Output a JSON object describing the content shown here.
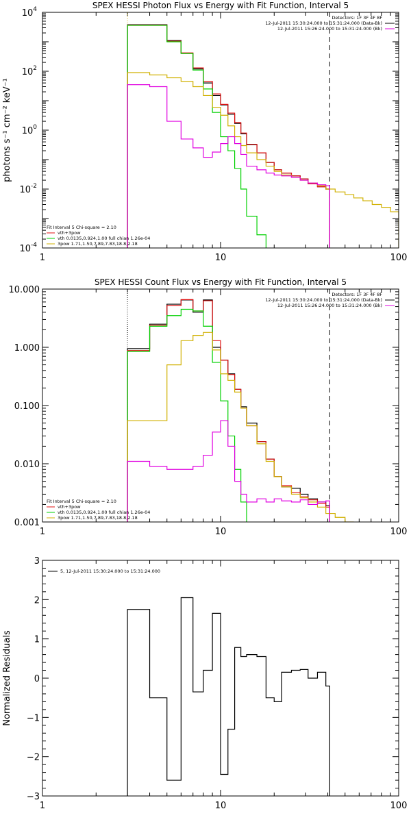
{
  "chart_data": [
    {
      "type": "line",
      "title": "SPEX HESSI Photon Flux vs Energy with Fit Function, Interval 5",
      "xlabel": "",
      "ylabel": "photons s⁻¹ cm⁻² keV⁻¹",
      "xscale": "log",
      "yscale": "log",
      "xlim": [
        1,
        100
      ],
      "ylim": [
        0.0001,
        10000
      ],
      "xticks": [
        {
          "v": 1,
          "label": "1"
        },
        {
          "v": 10,
          "label": "10"
        },
        {
          "v": 100,
          "label": "100"
        }
      ],
      "yticks": [
        {
          "v": 0.0001,
          "base": "10",
          "exp": "-4"
        },
        {
          "v": 0.01,
          "base": "10",
          "exp": "-2"
        },
        {
          "v": 1,
          "base": "10",
          "exp": "0"
        },
        {
          "v": 100,
          "base": "10",
          "exp": "2"
        },
        {
          "v": 10000,
          "base": "10",
          "exp": "4"
        }
      ],
      "legend_topright": [
        "Detectors: 1F 3F 4F 8F",
        "12-Jul-2011 15:30:24.000 to 15:31:24.000 (Data-Bk)",
        "12-Jul-2011 15:26:24.000 to 15:31:24.000 (Bk)"
      ],
      "legend_bottomleft": [
        "Fit Interval 5   Chi-square = 2.10",
        "vth+3pow",
        "vth 0.0135,0.924,1.00  full chian 1.26e-04",
        "3pow 1.71,1.50,7.89,7.83,18.8,2.18"
      ],
      "vlines": [
        {
          "x": 3,
          "style": "dotted",
          "color": "#d0b000"
        },
        {
          "x": 41,
          "style": "dashed",
          "color": "#000000"
        }
      ],
      "series": [
        {
          "color": "#000000",
          "edges": [
            3,
            4,
            5,
            6,
            7,
            8,
            9,
            10,
            11,
            12,
            13,
            14,
            16,
            18,
            20,
            22,
            25,
            28,
            31,
            35,
            39,
            41
          ],
          "values": [
            3800,
            3800,
            1100,
            410,
            120,
            40,
            15,
            7.2,
            3.5,
            1.7,
            0.75,
            0.32,
            0.17,
            0.08,
            0.045,
            0.035,
            0.028,
            0.022,
            0.015,
            0.012,
            0.01
          ]
        },
        {
          "color": "#e01010",
          "edges": [
            3,
            4,
            5,
            6,
            7,
            8,
            9,
            10,
            11,
            12,
            13,
            14,
            16,
            18,
            20,
            22,
            25,
            28,
            31,
            35,
            39,
            41
          ],
          "values": [
            3700,
            3700,
            1050,
            420,
            130,
            45,
            17,
            7.5,
            3.8,
            1.8,
            0.8,
            0.33,
            0.17,
            0.08,
            0.045,
            0.035,
            0.028,
            0.022,
            0.015,
            0.012,
            0.01
          ]
        },
        {
          "color": "#00d000",
          "edges": [
            3,
            4,
            5,
            6,
            7,
            8,
            9,
            10,
            11,
            12,
            13,
            14,
            16,
            18
          ],
          "values": [
            3600,
            3600,
            1000,
            400,
            110,
            25,
            4,
            0.6,
            0.2,
            0.05,
            0.01,
            0.0012,
            0.00028,
            0.0001
          ]
        },
        {
          "color": "#d0b000",
          "edges": [
            3,
            4,
            5,
            6,
            7,
            8,
            9,
            10,
            11,
            12,
            13,
            14,
            16,
            18,
            20,
            22,
            25,
            28,
            31,
            35,
            39,
            44,
            50,
            56,
            63,
            71,
            80,
            90,
            100
          ],
          "values": [
            90,
            75,
            60,
            45,
            30,
            15,
            6,
            3.2,
            1.4,
            0.6,
            0.3,
            0.17,
            0.1,
            0.06,
            0.04,
            0.03,
            0.025,
            0.02,
            0.016,
            0.013,
            0.01,
            0.008,
            0.0065,
            0.005,
            0.004,
            0.003,
            0.0024,
            0.0017
          ]
        },
        {
          "color": "#e000e0",
          "edges": [
            3,
            4,
            5,
            6,
            7,
            8,
            9,
            10,
            11,
            12,
            13,
            14,
            16,
            18,
            20,
            22,
            25,
            28,
            31,
            35,
            39,
            41
          ],
          "values": [
            35,
            30,
            2,
            0.5,
            0.25,
            0.12,
            0.18,
            0.35,
            0.6,
            0.35,
            0.15,
            0.06,
            0.045,
            0.035,
            0.03,
            0.028,
            0.025,
            0.02,
            0.016,
            0.014,
            0.013
          ]
        }
      ]
    },
    {
      "type": "line",
      "title": "SPEX HESSI Count Flux vs Energy with Fit Function, Interval 5",
      "xlabel": "",
      "ylabel": "",
      "xscale": "log",
      "yscale": "log",
      "xlim": [
        1,
        100
      ],
      "ylim": [
        0.001,
        10
      ],
      "xticks": [
        {
          "v": 1,
          "label": "1"
        },
        {
          "v": 10,
          "label": "10"
        },
        {
          "v": 100,
          "label": "100"
        }
      ],
      "yticks": [
        {
          "v": 0.001,
          "label": "0.001"
        },
        {
          "v": 0.01,
          "label": "0.010"
        },
        {
          "v": 0.1,
          "label": "0.100"
        },
        {
          "v": 1,
          "label": "1.000"
        },
        {
          "v": 10,
          "label": "10.000"
        }
      ],
      "legend_topright": [
        "Detectors: 1F 3F 4F 8F",
        "12-Jul-2011 15:30:24.000 to 15:31:24.000 (Data-Bk)",
        "12-Jul-2011 15:26:24.000 to 15:31:24.000 (Bk)"
      ],
      "legend_bottomleft": [
        "Fit Interval 5   Chi-square = 2.10",
        "vth+3pow",
        "vth 0.0135,0.924,1.00  full chian 1.26e-04",
        "3pow 1.71,1.50,7.89,7.83,18.8,2.18"
      ],
      "vlines": [
        {
          "x": 3,
          "style": "dotted",
          "color": "#000000"
        },
        {
          "x": 41,
          "style": "dashed",
          "color": "#000000"
        }
      ],
      "series": [
        {
          "color": "#000000",
          "edges": [
            3,
            4,
            5,
            6,
            7,
            8,
            9,
            10,
            11,
            12,
            13,
            14,
            16,
            18,
            20,
            22,
            25,
            28,
            31,
            35,
            39,
            41
          ],
          "values": [
            0.95,
            2.5,
            5.5,
            6.5,
            4.0,
            6.5,
            1.0,
            0.6,
            0.35,
            0.19,
            0.095,
            0.05,
            0.024,
            0.012,
            0.006,
            0.004,
            0.0038,
            0.003,
            0.0025,
            0.0022,
            0.0019
          ]
        },
        {
          "color": "#e01010",
          "edges": [
            3,
            4,
            5,
            6,
            7,
            8,
            9,
            10,
            11,
            12,
            13,
            14,
            16,
            18,
            20,
            22,
            25,
            28,
            31,
            35,
            39,
            41
          ],
          "values": [
            0.88,
            2.4,
            5.2,
            6.6,
            4.2,
            6.3,
            1.3,
            0.6,
            0.34,
            0.19,
            0.09,
            0.045,
            0.024,
            0.012,
            0.006,
            0.0042,
            0.0032,
            0.0027,
            0.0024,
            0.0021,
            0.0018
          ]
        },
        {
          "color": "#00d000",
          "edges": [
            3,
            4,
            5,
            6,
            7,
            8,
            9,
            10,
            11,
            12,
            13,
            14
          ],
          "values": [
            0.85,
            2.3,
            3.5,
            4.5,
            4.2,
            2.3,
            0.55,
            0.12,
            0.03,
            0.008,
            0.0022
          ]
        },
        {
          "color": "#d0b000",
          "edges": [
            3,
            4,
            5,
            6,
            7,
            8,
            9,
            10,
            11,
            12,
            13,
            14,
            16,
            18,
            20,
            22,
            25,
            28,
            31,
            35,
            39,
            44,
            50,
            56
          ],
          "values": [
            0.055,
            0.055,
            0.5,
            1.3,
            1.6,
            1.8,
            0.9,
            0.35,
            0.27,
            0.17,
            0.09,
            0.045,
            0.022,
            0.011,
            0.006,
            0.004,
            0.003,
            0.0026,
            0.0022,
            0.0018,
            0.0014,
            0.0012,
            0.001
          ]
        },
        {
          "color": "#e000e0",
          "edges": [
            3,
            4,
            5,
            6,
            7,
            8,
            9,
            10,
            11,
            12,
            13,
            14,
            16,
            18,
            20,
            22,
            25,
            28,
            31,
            35,
            39,
            41
          ],
          "values": [
            0.011,
            0.009,
            0.008,
            0.008,
            0.009,
            0.014,
            0.035,
            0.055,
            0.02,
            0.005,
            0.003,
            0.0022,
            0.0025,
            0.0022,
            0.0025,
            0.0023,
            0.0022,
            0.0024,
            0.002,
            0.0022,
            0.0023
          ]
        }
      ]
    },
    {
      "type": "line",
      "title": "",
      "xlabel": "",
      "ylabel": "Normalized Residuals",
      "xscale": "log",
      "yscale": "linear",
      "xlim": [
        1,
        100
      ],
      "ylim": [
        -3,
        3
      ],
      "xticks": [
        {
          "v": 1,
          "label": "1"
        },
        {
          "v": 10,
          "label": "10"
        },
        {
          "v": 100,
          "label": "100"
        }
      ],
      "yticks": [
        {
          "v": -3,
          "label": "−3"
        },
        {
          "v": -2,
          "label": "−2"
        },
        {
          "v": -1,
          "label": "−1"
        },
        {
          "v": 0,
          "label": "0"
        },
        {
          "v": 1,
          "label": "1"
        },
        {
          "v": 2,
          "label": "2"
        },
        {
          "v": 3,
          "label": "3"
        }
      ],
      "legend_topleft": [
        "5, 12-Jul-2011 15:30:24.000 to 15:31:24.000"
      ],
      "series": [
        {
          "color": "#000000",
          "edges": [
            3,
            4,
            5,
            6,
            7,
            8,
            9,
            10,
            11,
            12,
            13,
            14,
            16,
            18,
            20,
            22,
            25,
            28,
            31,
            35,
            39,
            41
          ],
          "values": [
            1.75,
            -0.5,
            -2.6,
            2.05,
            -0.35,
            0.2,
            1.65,
            -2.45,
            -1.3,
            0.78,
            0.55,
            0.6,
            0.55,
            -0.5,
            -0.6,
            0.15,
            0.2,
            0.22,
            0,
            0.15,
            -0.2
          ]
        }
      ]
    }
  ]
}
